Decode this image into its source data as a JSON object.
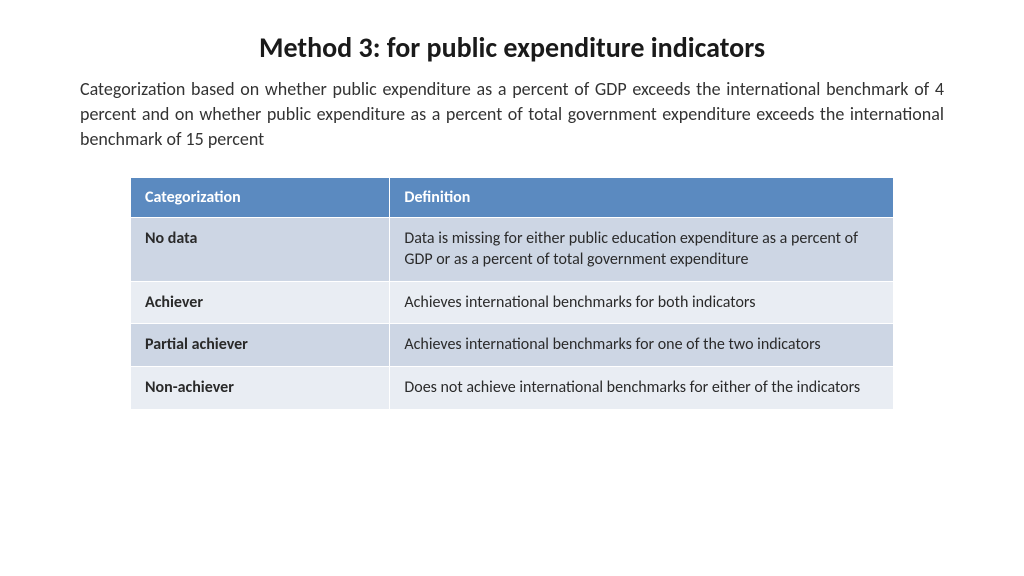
{
  "title": "Method 3: for public expenditure indicators",
  "description": "Categorization based on whether public expenditure as a percent of GDP exceeds the international benchmark of 4 percent and on whether public expenditure as a percent of total government expenditure exceeds the international benchmark of 15 percent",
  "table": {
    "headers": {
      "col1": "Categorization",
      "col2": "Definition"
    },
    "header_bg": "#5b8ac0",
    "header_text_color": "#ffffff",
    "odd_row_bg": "#cdd6e4",
    "even_row_bg": "#e9edf3",
    "border_color": "#ffffff",
    "col1_width_pct": 34,
    "font_size": 16,
    "rows": [
      {
        "category": "No data",
        "definition": "Data is missing for either public education expenditure as a percent of GDP or as a percent of total government expenditure"
      },
      {
        "category": "Achiever",
        "definition": "Achieves international benchmarks for both indicators"
      },
      {
        "category": "Partial achiever",
        "definition": "Achieves international benchmarks for one of the two indicators"
      },
      {
        "category": "Non-achiever",
        "definition": "Does not achieve international benchmarks for either of the indicators"
      }
    ]
  },
  "colors": {
    "title_color": "#1a1a1a",
    "body_text_color": "#333333",
    "background": "#ffffff"
  },
  "typography": {
    "title_fontsize": 28,
    "description_fontsize": 18,
    "table_fontsize": 16,
    "font_family": "Calibri"
  }
}
